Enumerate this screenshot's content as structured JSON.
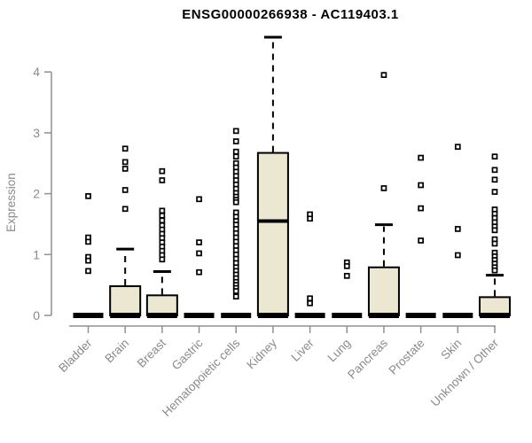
{
  "chart_data": {
    "type": "boxplot",
    "title": "ENSG00000266938 - AC119403.1",
    "ylabel": "Expression",
    "xlabel": "",
    "ylim": [
      0,
      4.6
    ],
    "yticks": [
      0,
      1,
      2,
      3,
      4
    ],
    "grid": false,
    "legend": "none",
    "marker": "open-square",
    "box_fill": "#ece7d0",
    "box_stroke": "#000000",
    "axis_color": "#909090",
    "label_color": "#8a8a8a",
    "categories": [
      "Bladder",
      "Brain",
      "Breast",
      "Gastric",
      "Hematopoietic cells",
      "Kidney",
      "Liver",
      "Lung",
      "Pancreas",
      "Prostate",
      "Skin",
      "Unknown / Other"
    ],
    "series": [
      {
        "label": "Bladder",
        "q1": 0,
        "median": 0,
        "q3": 0,
        "whisker_high": 0,
        "outliers": [
          1.96,
          1.28,
          1.21,
          0.96,
          0.9,
          0.73
        ]
      },
      {
        "label": "Brain",
        "q1": 0,
        "median": 0,
        "q3": 0.48,
        "whisker_high": 1.09,
        "outliers": [
          2.74,
          2.52,
          2.41,
          2.06,
          1.75
        ]
      },
      {
        "label": "Breast",
        "q1": 0,
        "median": 0,
        "q3": 0.33,
        "whisker_high": 0.72,
        "outliers": [
          2.37,
          2.22,
          1.72,
          1.64,
          1.56,
          1.48,
          1.41,
          1.34,
          1.27,
          1.2,
          1.13,
          1.06,
          0.99,
          0.92
        ]
      },
      {
        "label": "Gastric",
        "q1": 0,
        "median": 0,
        "q3": 0,
        "whisker_high": 0,
        "outliers": [
          1.91,
          1.2,
          1.02,
          0.71
        ]
      },
      {
        "label": "Hematopoietic cells",
        "q1": 0,
        "median": 0,
        "q3": 0,
        "whisker_high": 0,
        "outliers": [
          3.03,
          2.86,
          2.69,
          2.61,
          2.5,
          2.43,
          2.36,
          2.29,
          2.22,
          2.15,
          2.08,
          2.01,
          1.95,
          1.9,
          1.86,
          1.69,
          1.62,
          1.55,
          1.49,
          1.42,
          1.35,
          1.28,
          1.21,
          1.14,
          1.07,
          1.0,
          0.93,
          0.86,
          0.79,
          0.73,
          0.67,
          0.61,
          0.55,
          0.5,
          0.45,
          0.4,
          0.31
        ]
      },
      {
        "label": "Kidney",
        "q1": 0,
        "median": 1.55,
        "q3": 2.67,
        "whisker_high": 4.57,
        "outliers": []
      },
      {
        "label": "Liver",
        "q1": 0,
        "median": 0,
        "q3": 0,
        "whisker_high": 0,
        "outliers": [
          1.66,
          1.59,
          0.28,
          0.2
        ]
      },
      {
        "label": "Lung",
        "q1": 0,
        "median": 0,
        "q3": 0,
        "whisker_high": 0,
        "outliers": [
          0.87,
          0.81,
          0.65
        ]
      },
      {
        "label": "Pancreas",
        "q1": 0,
        "median": 0,
        "q3": 0.79,
        "whisker_high": 1.49,
        "outliers": [
          3.95,
          2.09
        ]
      },
      {
        "label": "Prostate",
        "q1": 0,
        "median": 0,
        "q3": 0,
        "whisker_high": 0,
        "outliers": [
          2.59,
          2.14,
          1.76,
          1.23
        ]
      },
      {
        "label": "Skin",
        "q1": 0,
        "median": 0,
        "q3": 0,
        "whisker_high": 0,
        "outliers": [
          2.77,
          1.42,
          0.99
        ]
      },
      {
        "label": "Unknown / Other",
        "q1": 0,
        "median": 0,
        "q3": 0.3,
        "whisker_high": 0.66,
        "outliers": [
          2.61,
          2.39,
          2.23,
          2.03,
          1.74,
          1.67,
          1.6,
          1.53,
          1.46,
          1.4,
          1.25,
          1.18,
          1.03,
          0.97,
          0.91,
          0.85,
          0.79,
          0.74
        ]
      }
    ]
  }
}
